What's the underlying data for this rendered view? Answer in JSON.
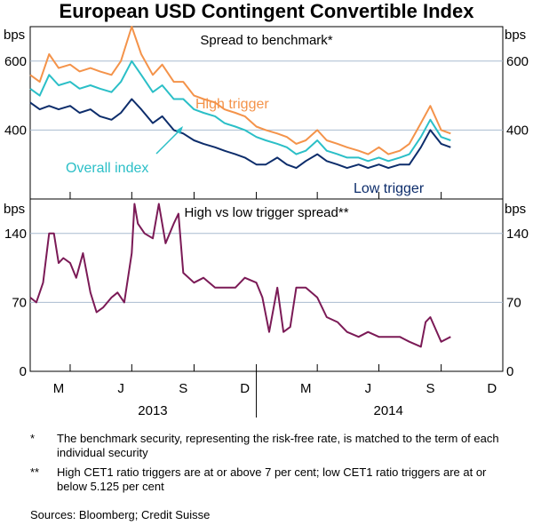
{
  "chart_data": [
    {
      "type": "line",
      "title": "European USD Contingent Convertible Index",
      "subtitle": "Spread to benchmark*",
      "ylabel": "bps",
      "ylim": [
        200,
        700
      ],
      "yticks": [
        400,
        600
      ],
      "grid": true,
      "x_range": [
        "2013-02-01",
        "2014-12-31"
      ],
      "series": [
        {
          "name": "High trigger",
          "color": "#f4934a",
          "x": [
            "2013-02-01",
            "2013-02-15",
            "2013-03-01",
            "2013-03-15",
            "2013-04-01",
            "2013-04-15",
            "2013-05-01",
            "2013-05-15",
            "2013-06-01",
            "2013-06-15",
            "2013-07-01",
            "2013-07-15",
            "2013-08-01",
            "2013-08-15",
            "2013-09-01",
            "2013-09-15",
            "2013-10-01",
            "2013-10-15",
            "2013-11-01",
            "2013-11-15",
            "2013-12-01",
            "2013-12-15",
            "2014-01-01",
            "2014-01-15",
            "2014-02-01",
            "2014-02-15",
            "2014-03-01",
            "2014-03-15",
            "2014-04-01",
            "2014-04-15",
            "2014-05-01",
            "2014-05-15",
            "2014-06-01",
            "2014-06-15",
            "2014-07-01",
            "2014-07-15",
            "2014-08-01",
            "2014-08-15",
            "2014-09-01",
            "2014-09-15",
            "2014-10-01",
            "2014-10-15"
          ],
          "values": [
            560,
            540,
            620,
            580,
            590,
            570,
            580,
            570,
            560,
            600,
            700,
            620,
            560,
            590,
            540,
            540,
            500,
            490,
            480,
            460,
            450,
            440,
            410,
            400,
            390,
            380,
            360,
            370,
            400,
            370,
            360,
            350,
            340,
            330,
            350,
            330,
            340,
            360,
            420,
            470,
            400,
            390
          ]
        },
        {
          "name": "Overall index",
          "color": "#2bbfc7",
          "x": [
            "2013-02-01",
            "2013-02-15",
            "2013-03-01",
            "2013-03-15",
            "2013-04-01",
            "2013-04-15",
            "2013-05-01",
            "2013-05-15",
            "2013-06-01",
            "2013-06-15",
            "2013-07-01",
            "2013-07-15",
            "2013-08-01",
            "2013-08-15",
            "2013-09-01",
            "2013-09-15",
            "2013-10-01",
            "2013-10-15",
            "2013-11-01",
            "2013-11-15",
            "2013-12-01",
            "2013-12-15",
            "2014-01-01",
            "2014-01-15",
            "2014-02-01",
            "2014-02-15",
            "2014-03-01",
            "2014-03-15",
            "2014-04-01",
            "2014-04-15",
            "2014-05-01",
            "2014-05-15",
            "2014-06-01",
            "2014-06-15",
            "2014-07-01",
            "2014-07-15",
            "2014-08-01",
            "2014-08-15",
            "2014-09-01",
            "2014-09-15",
            "2014-10-01",
            "2014-10-15"
          ],
          "values": [
            520,
            500,
            560,
            530,
            540,
            520,
            530,
            520,
            510,
            540,
            600,
            560,
            510,
            530,
            490,
            490,
            460,
            450,
            440,
            420,
            410,
            400,
            380,
            370,
            360,
            350,
            330,
            340,
            370,
            340,
            330,
            320,
            320,
            310,
            320,
            310,
            320,
            330,
            380,
            430,
            380,
            370
          ]
        },
        {
          "name": "Low trigger",
          "color": "#0d2d6b",
          "x": [
            "2013-02-01",
            "2013-02-15",
            "2013-03-01",
            "2013-03-15",
            "2013-04-01",
            "2013-04-15",
            "2013-05-01",
            "2013-05-15",
            "2013-06-01",
            "2013-06-15",
            "2013-07-01",
            "2013-07-15",
            "2013-08-01",
            "2013-08-15",
            "2013-09-01",
            "2013-09-15",
            "2013-10-01",
            "2013-10-15",
            "2013-11-01",
            "2013-11-15",
            "2013-12-01",
            "2013-12-15",
            "2014-01-01",
            "2014-01-15",
            "2014-02-01",
            "2014-02-15",
            "2014-03-01",
            "2014-03-15",
            "2014-04-01",
            "2014-04-15",
            "2014-05-01",
            "2014-05-15",
            "2014-06-01",
            "2014-06-15",
            "2014-07-01",
            "2014-07-15",
            "2014-08-01",
            "2014-08-15",
            "2014-09-01",
            "2014-09-15",
            "2014-10-01",
            "2014-10-15"
          ],
          "values": [
            480,
            460,
            470,
            460,
            470,
            450,
            460,
            440,
            430,
            450,
            490,
            460,
            420,
            440,
            400,
            390,
            370,
            360,
            350,
            340,
            330,
            320,
            300,
            300,
            320,
            300,
            290,
            310,
            330,
            310,
            300,
            290,
            300,
            290,
            300,
            290,
            300,
            300,
            350,
            400,
            360,
            350
          ]
        }
      ]
    },
    {
      "type": "line",
      "subtitle": "High vs low trigger spread**",
      "ylabel": "bps",
      "ylim": [
        0,
        175
      ],
      "yticks": [
        0,
        70,
        140
      ],
      "grid": true,
      "x_range": [
        "2013-02-01",
        "2014-12-31"
      ],
      "xticks": [
        "M",
        "J",
        "S",
        "D",
        "M",
        "J",
        "S",
        "D"
      ],
      "year_labels": [
        "2013",
        "2014"
      ],
      "series": [
        {
          "name": "High vs low trigger spread",
          "color": "#7b1a56",
          "x": [
            "2013-02-01",
            "2013-02-10",
            "2013-02-20",
            "2013-03-01",
            "2013-03-08",
            "2013-03-15",
            "2013-03-22",
            "2013-04-01",
            "2013-04-10",
            "2013-04-20",
            "2013-05-01",
            "2013-05-10",
            "2013-05-20",
            "2013-06-01",
            "2013-06-10",
            "2013-06-20",
            "2013-07-01",
            "2013-07-05",
            "2013-07-10",
            "2013-07-20",
            "2013-08-01",
            "2013-08-10",
            "2013-08-20",
            "2013-09-01",
            "2013-09-08",
            "2013-09-15",
            "2013-10-01",
            "2013-10-15",
            "2013-11-01",
            "2013-11-15",
            "2013-12-01",
            "2013-12-15",
            "2014-01-01",
            "2014-01-10",
            "2014-01-20",
            "2014-02-01",
            "2014-02-10",
            "2014-02-20",
            "2014-03-01",
            "2014-03-15",
            "2014-04-01",
            "2014-04-15",
            "2014-05-01",
            "2014-05-15",
            "2014-06-01",
            "2014-06-15",
            "2014-07-01",
            "2014-07-15",
            "2014-08-01",
            "2014-08-15",
            "2014-09-01",
            "2014-09-08",
            "2014-09-15",
            "2014-10-01",
            "2014-10-15"
          ],
          "values": [
            75,
            70,
            90,
            140,
            140,
            110,
            115,
            110,
            95,
            120,
            80,
            60,
            65,
            75,
            80,
            70,
            120,
            170,
            150,
            140,
            135,
            170,
            130,
            150,
            160,
            100,
            90,
            95,
            85,
            85,
            85,
            95,
            90,
            75,
            40,
            85,
            40,
            45,
            85,
            85,
            75,
            55,
            50,
            40,
            35,
            40,
            35,
            35,
            35,
            30,
            25,
            50,
            55,
            30,
            35
          ]
        }
      ]
    }
  ],
  "notes": [
    {
      "mark": "*",
      "text": "The benchmark security, representing the risk-free rate, is matched to the term of each individual security"
    },
    {
      "mark": "**",
      "text": "High CET1 ratio triggers are at or above 7 per cent; low CET1 ratio triggers are at or below 5.125 per cent"
    }
  ],
  "sources": "Sources:   Bloomberg; Credit Suisse"
}
